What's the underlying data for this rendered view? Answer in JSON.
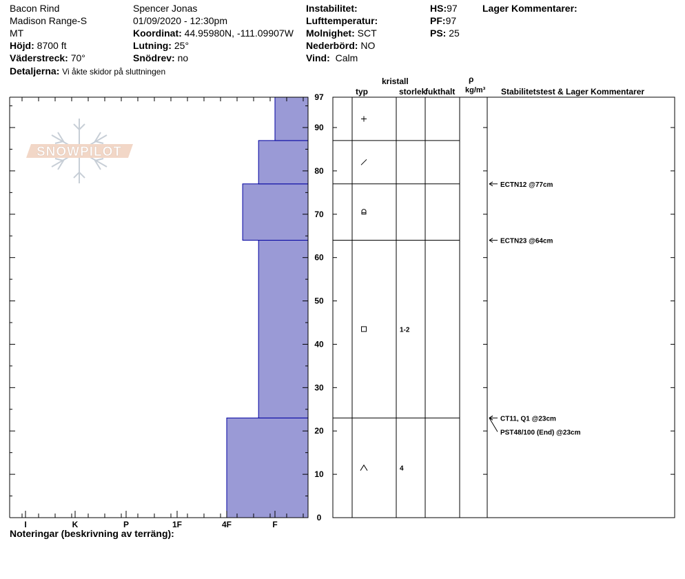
{
  "header": {
    "location": "Bacon Rind",
    "range": "Madison Range-S",
    "state": "MT",
    "elevation_label": "Höjd:",
    "elevation": "8700 ft",
    "aspect_label": "Väderstreck:",
    "aspect": "70°",
    "details_label": "Detaljerna:",
    "details": "Vi åkte skidor på sluttningen",
    "observer": "Spencer Jonas",
    "datetime": "01/09/2020 - 12:30pm",
    "coord_label": "Koordinat:",
    "coord": "44.95980N, -111.09907W",
    "slope_label": "Lutning:",
    "slope": "25°",
    "snowdrift_label": "Snödrev:",
    "snowdrift": "no",
    "instability_label": "Instabilitet:",
    "airtemp_label": "Lufttemperatur:",
    "clouds_label": "Molnighet:",
    "clouds": "SCT",
    "precip_label": "Nederbörd:",
    "precip": "NO",
    "wind_label": "Vind:",
    "wind": "Calm",
    "hs_label": "HS:",
    "hs": "97",
    "pf_label": "PF:",
    "pf": "97",
    "ps_label": "PS:",
    "ps": "25",
    "layer_comments_label": "Lager Kommentarer:"
  },
  "logo_text": "SNOWPILOT",
  "columns": {
    "crystal": "kristall",
    "type": "typ",
    "size": "storlek",
    "moisture": "fukthalt",
    "rho": "ρ",
    "density_unit": "kg/m³",
    "stability": "Stabilitetstest & Lager Kommentarer"
  },
  "notes_label": "Noteringar (beskrivning av terräng):",
  "chart_data": {
    "type": "bar",
    "title": "",
    "xlabel": "",
    "ylabel": "",
    "x_categories": [
      "I",
      "K",
      "P",
      "1F",
      "4F",
      "F"
    ],
    "y_ticks": [
      0,
      10,
      20,
      30,
      40,
      50,
      60,
      70,
      80,
      90,
      97
    ],
    "ylim": [
      0,
      97
    ],
    "bar_color": "#9a9ad6",
    "layers": [
      {
        "bottom": 0,
        "top": 23,
        "hardness": "4F+",
        "hardness_value": 4.0,
        "grain": "caret",
        "size": "4"
      },
      {
        "bottom": 23,
        "top": 64,
        "hardness": "F+",
        "hardness_value": 4.66,
        "grain": "square",
        "size": "1-2"
      },
      {
        "bottom": 64,
        "top": 77,
        "hardness": "4F-",
        "hardness_value": 4.33,
        "grain": "rounded-faceted",
        "size": ""
      },
      {
        "bottom": 77,
        "top": 87,
        "hardness": "F+",
        "hardness_value": 4.66,
        "grain": "slash",
        "size": ""
      },
      {
        "bottom": 87,
        "top": 97,
        "hardness": "F",
        "hardness_value": 5.0,
        "grain": "plus",
        "size": ""
      }
    ],
    "tests": [
      {
        "label": "ECTN12 @77cm",
        "depth": 77
      },
      {
        "label": "ECTN23 @64cm",
        "depth": 64
      },
      {
        "label": "CT11, Q1 @23cm",
        "depth": 23
      },
      {
        "label": "PST48/100 (End) @23cm",
        "depth": 23
      }
    ]
  }
}
